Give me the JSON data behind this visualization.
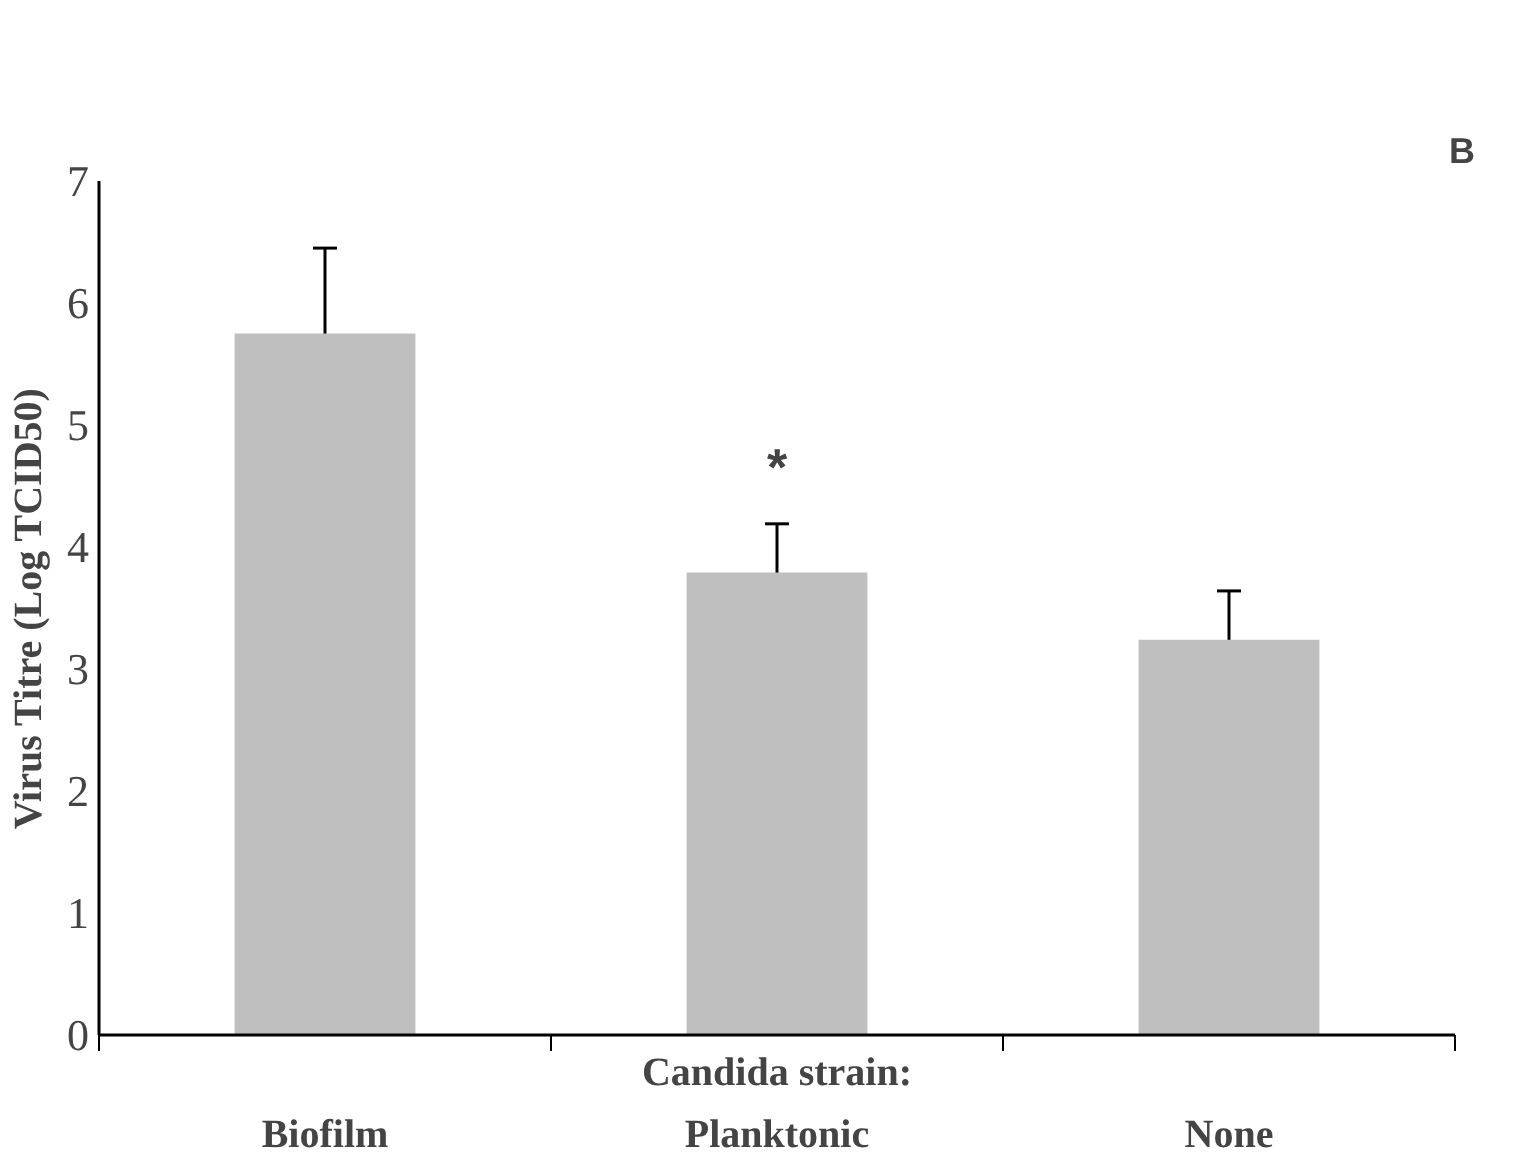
{
  "chart_data": {
    "type": "bar",
    "xlabel": "Candida strain:",
    "ylabel": "Virus Titre (Log TCID50)",
    "categories": [
      "Biofilm",
      "Planktonic",
      "None"
    ],
    "values": [
      5.75,
      3.79,
      3.24
    ],
    "errors": [
      0.7,
      0.4,
      0.4
    ],
    "color": "#bfbfbf",
    "ylim": [
      0,
      7
    ],
    "yticks": [
      0,
      1,
      2,
      3,
      4,
      5,
      6,
      7
    ],
    "grid": false,
    "annotations": [
      "B",
      "*"
    ]
  }
}
